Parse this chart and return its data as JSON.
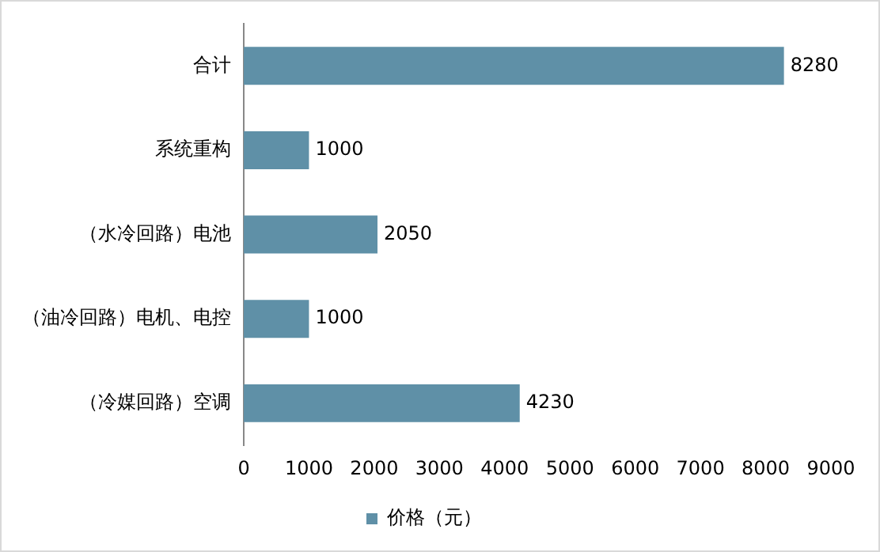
{
  "chart_data": {
    "type": "bar",
    "orientation": "horizontal",
    "categories": [
      "合计",
      "系统重构",
      "（水冷回路）电池",
      "（油冷回路）电机、电控",
      "（冷媒回路）空调"
    ],
    "series": [
      {
        "name": "价格（元）",
        "color": "#5f90a7",
        "values": [
          8280,
          1000,
          2050,
          1000,
          4230
        ]
      }
    ],
    "xlim": [
      0,
      9000
    ],
    "xticks": [
      0,
      1000,
      2000,
      3000,
      4000,
      5000,
      6000,
      7000,
      8000,
      9000
    ],
    "grid": false,
    "legend": "bottom",
    "data_labels": true
  }
}
